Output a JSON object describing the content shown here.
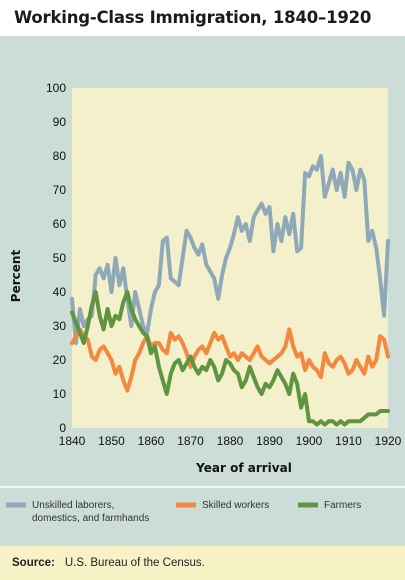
{
  "title": "Working-Class Immigration, 1840–1920",
  "source": {
    "label": "Source:",
    "text": "U.S. Bureau of the Census."
  },
  "chart_data": {
    "type": "line",
    "xlabel": "Year of arrival",
    "ylabel": "Percent",
    "xlim": [
      1840,
      1920
    ],
    "ylim": [
      0,
      100
    ],
    "x_ticks": [
      "1840",
      "1850",
      "1860",
      "1870",
      "1880",
      "1890",
      "1900",
      "1910",
      "1920"
    ],
    "y_ticks": [
      "0",
      "10",
      "20",
      "30",
      "40",
      "50",
      "60",
      "70",
      "80",
      "90",
      "100"
    ],
    "grid": false,
    "legend_position": "bottom",
    "series": [
      {
        "name": "Unskilled laborers, domestics, and farmhands",
        "color": "#8fa9b8",
        "points": [
          [
            1840,
            38
          ],
          [
            1841,
            25
          ],
          [
            1842,
            35
          ],
          [
            1843,
            30
          ],
          [
            1844,
            32
          ],
          [
            1845,
            33
          ],
          [
            1846,
            45
          ],
          [
            1847,
            47
          ],
          [
            1848,
            44
          ],
          [
            1849,
            48
          ],
          [
            1850,
            40
          ],
          [
            1851,
            50
          ],
          [
            1852,
            42
          ],
          [
            1853,
            47
          ],
          [
            1854,
            38
          ],
          [
            1855,
            30
          ],
          [
            1856,
            40
          ],
          [
            1857,
            35
          ],
          [
            1858,
            30
          ],
          [
            1859,
            28
          ],
          [
            1860,
            35
          ],
          [
            1861,
            40
          ],
          [
            1862,
            42
          ],
          [
            1863,
            55
          ],
          [
            1864,
            56
          ],
          [
            1865,
            44
          ],
          [
            1866,
            43
          ],
          [
            1867,
            42
          ],
          [
            1868,
            50
          ],
          [
            1869,
            58
          ],
          [
            1870,
            56
          ],
          [
            1871,
            53
          ],
          [
            1872,
            51
          ],
          [
            1873,
            54
          ],
          [
            1874,
            48
          ],
          [
            1875,
            46
          ],
          [
            1876,
            44
          ],
          [
            1877,
            38
          ],
          [
            1878,
            45
          ],
          [
            1879,
            50
          ],
          [
            1880,
            53
          ],
          [
            1881,
            57
          ],
          [
            1882,
            62
          ],
          [
            1883,
            58
          ],
          [
            1884,
            60
          ],
          [
            1885,
            55
          ],
          [
            1886,
            62
          ],
          [
            1887,
            64
          ],
          [
            1888,
            66
          ],
          [
            1889,
            63
          ],
          [
            1890,
            65
          ],
          [
            1891,
            52
          ],
          [
            1892,
            60
          ],
          [
            1893,
            55
          ],
          [
            1894,
            62
          ],
          [
            1895,
            57
          ],
          [
            1896,
            63
          ],
          [
            1897,
            52
          ],
          [
            1898,
            53
          ],
          [
            1899,
            75
          ],
          [
            1900,
            74
          ],
          [
            1901,
            77
          ],
          [
            1902,
            76
          ],
          [
            1903,
            80
          ],
          [
            1904,
            68
          ],
          [
            1905,
            72
          ],
          [
            1906,
            76
          ],
          [
            1907,
            70
          ],
          [
            1908,
            75
          ],
          [
            1909,
            68
          ],
          [
            1910,
            78
          ],
          [
            1911,
            76
          ],
          [
            1912,
            70
          ],
          [
            1913,
            76
          ],
          [
            1914,
            73
          ],
          [
            1915,
            55
          ],
          [
            1916,
            58
          ],
          [
            1917,
            53
          ],
          [
            1918,
            44
          ],
          [
            1919,
            33
          ],
          [
            1920,
            55
          ]
        ]
      },
      {
        "name": "Skilled workers",
        "color": "#f4883f",
        "points": [
          [
            1840,
            25
          ],
          [
            1841,
            27
          ],
          [
            1842,
            29
          ],
          [
            1843,
            27
          ],
          [
            1844,
            26
          ],
          [
            1845,
            21
          ],
          [
            1846,
            20
          ],
          [
            1847,
            23
          ],
          [
            1848,
            24
          ],
          [
            1849,
            22
          ],
          [
            1850,
            20
          ],
          [
            1851,
            16
          ],
          [
            1852,
            18
          ],
          [
            1853,
            14
          ],
          [
            1854,
            11
          ],
          [
            1855,
            15
          ],
          [
            1856,
            20
          ],
          [
            1857,
            22
          ],
          [
            1858,
            25
          ],
          [
            1859,
            27
          ],
          [
            1860,
            24
          ],
          [
            1861,
            25
          ],
          [
            1862,
            25
          ],
          [
            1863,
            23
          ],
          [
            1864,
            22
          ],
          [
            1865,
            28
          ],
          [
            1866,
            26
          ],
          [
            1867,
            27
          ],
          [
            1868,
            25
          ],
          [
            1869,
            22
          ],
          [
            1870,
            18
          ],
          [
            1871,
            21
          ],
          [
            1872,
            23
          ],
          [
            1873,
            24
          ],
          [
            1874,
            22
          ],
          [
            1875,
            25
          ],
          [
            1876,
            28
          ],
          [
            1877,
            26
          ],
          [
            1878,
            27
          ],
          [
            1879,
            24
          ],
          [
            1880,
            21
          ],
          [
            1881,
            22
          ],
          [
            1882,
            20
          ],
          [
            1883,
            22
          ],
          [
            1884,
            21
          ],
          [
            1885,
            20
          ],
          [
            1886,
            22
          ],
          [
            1887,
            24
          ],
          [
            1888,
            21
          ],
          [
            1889,
            20
          ],
          [
            1890,
            19
          ],
          [
            1891,
            20
          ],
          [
            1892,
            21
          ],
          [
            1893,
            22
          ],
          [
            1894,
            24
          ],
          [
            1895,
            29
          ],
          [
            1896,
            24
          ],
          [
            1897,
            21
          ],
          [
            1898,
            22
          ],
          [
            1899,
            17
          ],
          [
            1900,
            20
          ],
          [
            1901,
            18
          ],
          [
            1902,
            17
          ],
          [
            1903,
            15
          ],
          [
            1904,
            22
          ],
          [
            1905,
            19
          ],
          [
            1906,
            18
          ],
          [
            1907,
            20
          ],
          [
            1908,
            21
          ],
          [
            1909,
            19
          ],
          [
            1910,
            16
          ],
          [
            1911,
            17
          ],
          [
            1912,
            20
          ],
          [
            1913,
            18
          ],
          [
            1914,
            16
          ],
          [
            1915,
            21
          ],
          [
            1916,
            18
          ],
          [
            1917,
            20
          ],
          [
            1918,
            27
          ],
          [
            1919,
            26
          ],
          [
            1920,
            21
          ]
        ]
      },
      {
        "name": "Farmers",
        "color": "#5f9440",
        "points": [
          [
            1840,
            34
          ],
          [
            1841,
            31
          ],
          [
            1842,
            28
          ],
          [
            1843,
            25
          ],
          [
            1844,
            30
          ],
          [
            1845,
            36
          ],
          [
            1846,
            40
          ],
          [
            1847,
            33
          ],
          [
            1848,
            29
          ],
          [
            1849,
            35
          ],
          [
            1850,
            30
          ],
          [
            1851,
            33
          ],
          [
            1852,
            32
          ],
          [
            1853,
            37
          ],
          [
            1854,
            40
          ],
          [
            1855,
            35
          ],
          [
            1856,
            32
          ],
          [
            1857,
            30
          ],
          [
            1858,
            28
          ],
          [
            1859,
            27
          ],
          [
            1860,
            22
          ],
          [
            1861,
            24
          ],
          [
            1862,
            18
          ],
          [
            1863,
            14
          ],
          [
            1864,
            10
          ],
          [
            1865,
            16
          ],
          [
            1866,
            19
          ],
          [
            1867,
            20
          ],
          [
            1868,
            17
          ],
          [
            1869,
            19
          ],
          [
            1870,
            21
          ],
          [
            1871,
            18
          ],
          [
            1872,
            16
          ],
          [
            1873,
            18
          ],
          [
            1874,
            17
          ],
          [
            1875,
            20
          ],
          [
            1876,
            18
          ],
          [
            1877,
            14
          ],
          [
            1878,
            16
          ],
          [
            1879,
            20
          ],
          [
            1880,
            19
          ],
          [
            1881,
            17
          ],
          [
            1882,
            16
          ],
          [
            1883,
            12
          ],
          [
            1884,
            14
          ],
          [
            1885,
            18
          ],
          [
            1886,
            15
          ],
          [
            1887,
            12
          ],
          [
            1888,
            10
          ],
          [
            1889,
            13
          ],
          [
            1890,
            12
          ],
          [
            1891,
            14
          ],
          [
            1892,
            17
          ],
          [
            1893,
            15
          ],
          [
            1894,
            13
          ],
          [
            1895,
            10
          ],
          [
            1896,
            16
          ],
          [
            1897,
            13
          ],
          [
            1898,
            6
          ],
          [
            1899,
            10
          ],
          [
            1900,
            2
          ],
          [
            1901,
            2
          ],
          [
            1902,
            1
          ],
          [
            1903,
            2
          ],
          [
            1904,
            1
          ],
          [
            1905,
            2
          ],
          [
            1906,
            2
          ],
          [
            1907,
            1
          ],
          [
            1908,
            2
          ],
          [
            1909,
            1
          ],
          [
            1910,
            2
          ],
          [
            1911,
            2
          ],
          [
            1912,
            2
          ],
          [
            1913,
            2
          ],
          [
            1914,
            3
          ],
          [
            1915,
            4
          ],
          [
            1916,
            4
          ],
          [
            1917,
            4
          ],
          [
            1918,
            5
          ],
          [
            1919,
            5
          ],
          [
            1920,
            5
          ]
        ]
      }
    ]
  }
}
